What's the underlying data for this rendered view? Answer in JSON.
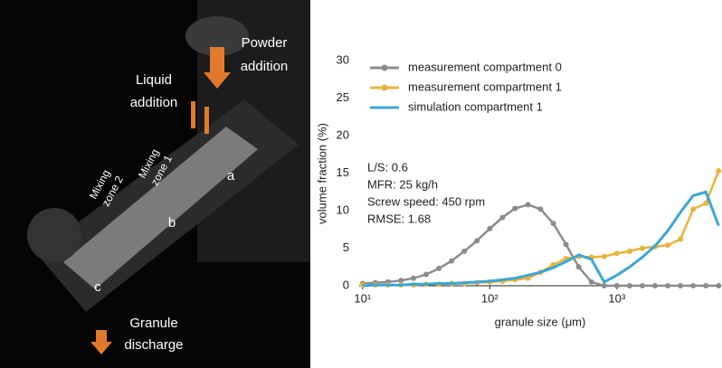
{
  "photo_labels": {
    "powder": [
      "Powder",
      "addition"
    ],
    "liquid": [
      "Liquid",
      "addition"
    ],
    "zone1": [
      "Mixing",
      "zone 1"
    ],
    "zone2": [
      "Mixing",
      "zone 2"
    ],
    "a": "a",
    "b": "b",
    "c": "c",
    "discharge": [
      "Granule",
      "discharge"
    ]
  },
  "chart_data": {
    "type": "line",
    "xlabel": "granule size (μm)",
    "ylabel": "volume fraction (%)",
    "xscale": "log",
    "xlim": [
      9.4,
      6600
    ],
    "ylim": [
      0,
      30
    ],
    "xticks": [
      {
        "value": 10,
        "label": "10¹"
      },
      {
        "value": 100,
        "label": "10²"
      },
      {
        "value": 1000,
        "label": "10³"
      }
    ],
    "yticks": [
      0,
      5,
      10,
      15,
      20,
      25,
      30
    ],
    "x": [
      10,
      12.6,
      15.8,
      20,
      25.1,
      31.6,
      39.8,
      50.1,
      63.1,
      79.4,
      100,
      126,
      158,
      200,
      251,
      316,
      398,
      501,
      631,
      794,
      1000,
      1259,
      1585,
      1995,
      2512,
      3162,
      3981,
      5012,
      6310
    ],
    "series": [
      {
        "name": "measurement compartment 0",
        "color": "#8c8c8c",
        "marker": true,
        "values": [
          0.3,
          0.4,
          0.5,
          0.7,
          1.0,
          1.5,
          2.3,
          3.3,
          4.6,
          6.0,
          7.6,
          9.1,
          10.3,
          10.8,
          10.2,
          8.3,
          5.5,
          2.5,
          0.5,
          0,
          0,
          0,
          0,
          0,
          0,
          0,
          0,
          0,
          0
        ]
      },
      {
        "name": "measurement compartment 1",
        "color": "#e8b33a",
        "marker": true,
        "values": [
          0.1,
          0.1,
          0.1,
          0.1,
          0.1,
          0.2,
          0.2,
          0.3,
          0.3,
          0.4,
          0.5,
          0.6,
          0.8,
          1.0,
          1.8,
          2.8,
          3.6,
          3.9,
          3.8,
          3.9,
          4.3,
          4.6,
          5.0,
          5.2,
          5.4,
          6.2,
          10.2,
          11.0,
          15.3
        ]
      },
      {
        "name": "simulation compartment 1",
        "color": "#3aa6d8",
        "marker": false,
        "values": [
          0,
          0.1,
          0.1,
          0.1,
          0.2,
          0.2,
          0.3,
          0.3,
          0.4,
          0.5,
          0.6,
          0.8,
          1.0,
          1.4,
          1.8,
          2.4,
          3.2,
          4.1,
          3.5,
          0.5,
          1.4,
          2.5,
          3.8,
          5.3,
          7.3,
          9.8,
          12.0,
          12.5,
          8.0
        ]
      }
    ],
    "legend": "upper left",
    "annotations": [
      "L/S: 0.6",
      "MFR: 25 kg/h",
      "Screw speed: 450 rpm",
      "RMSE: 1.68"
    ]
  }
}
